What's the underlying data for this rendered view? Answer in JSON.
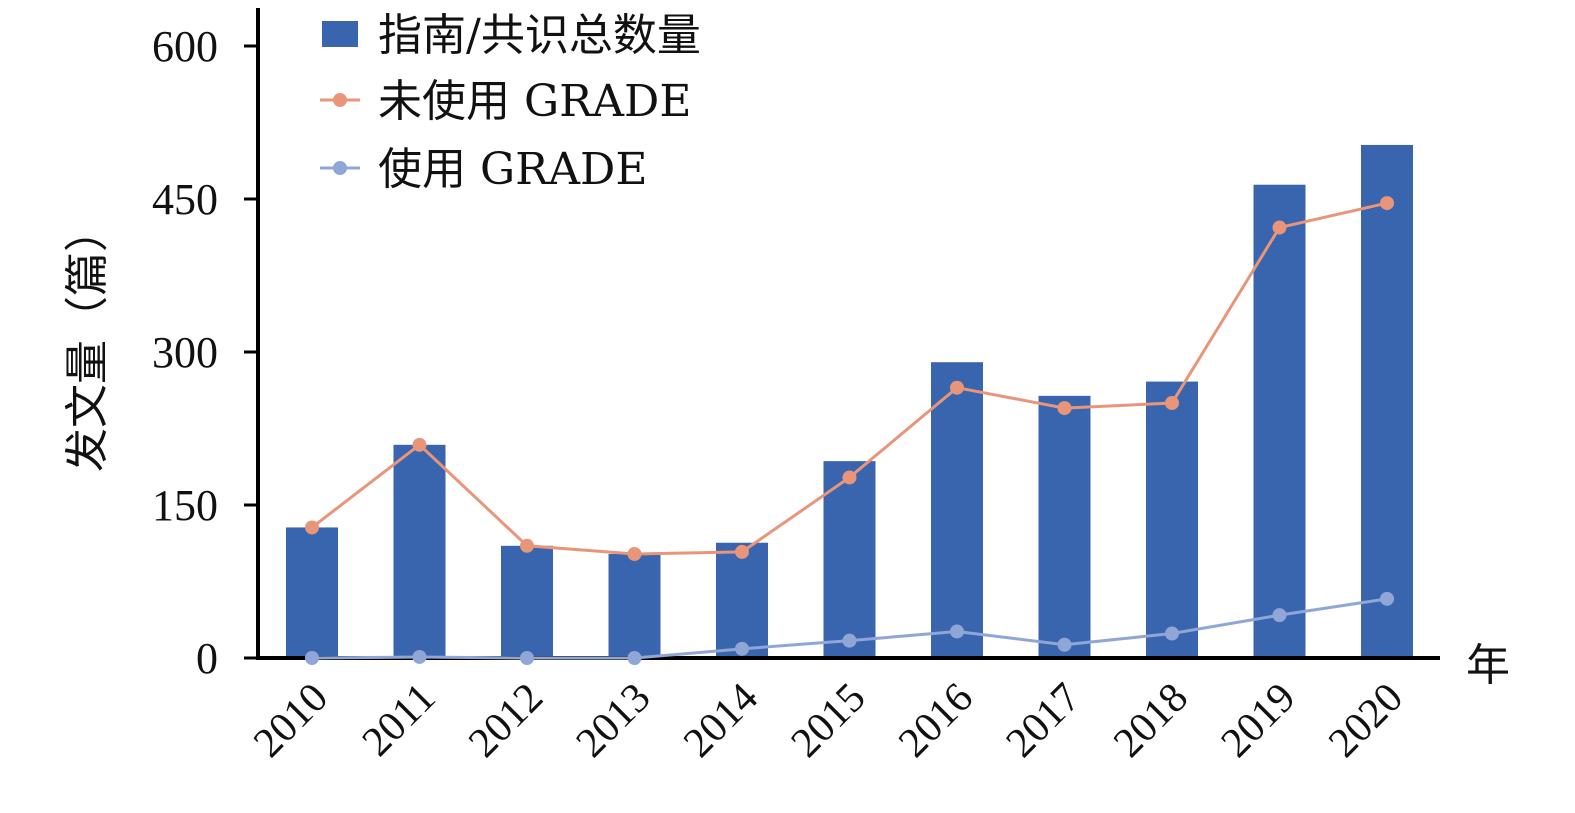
{
  "chart_data": {
    "type": "bar",
    "ylabel": "发文量（篇）",
    "xlabel": "年",
    "ylim": [
      0,
      600
    ],
    "yticks": [
      0,
      150,
      300,
      450,
      600
    ],
    "ytick_labels": [
      "0",
      "150",
      "300",
      "450",
      "600"
    ],
    "grid": false,
    "legend_position": "top-left",
    "categories": [
      "2010",
      "2011",
      "2012",
      "2013",
      "2014",
      "2015",
      "2016",
      "2017",
      "2018",
      "2019",
      "2020"
    ],
    "series": [
      {
        "name": "指南/共识总数量",
        "kind": "bar",
        "color": "#3965ae",
        "values": [
          128,
          209,
          110,
          102,
          113,
          193,
          290,
          257,
          271,
          464,
          503
        ]
      },
      {
        "name": "未使用 GRADE",
        "kind": "line",
        "color": "#e8957a",
        "values": [
          128,
          209,
          110,
          102,
          104,
          177,
          265,
          245,
          250,
          422,
          446
        ]
      },
      {
        "name": "使用 GRADE",
        "kind": "line",
        "color": "#8fa6d7",
        "values": [
          0,
          1,
          0,
          0,
          9,
          17,
          26,
          13,
          24,
          42,
          58
        ]
      }
    ]
  }
}
